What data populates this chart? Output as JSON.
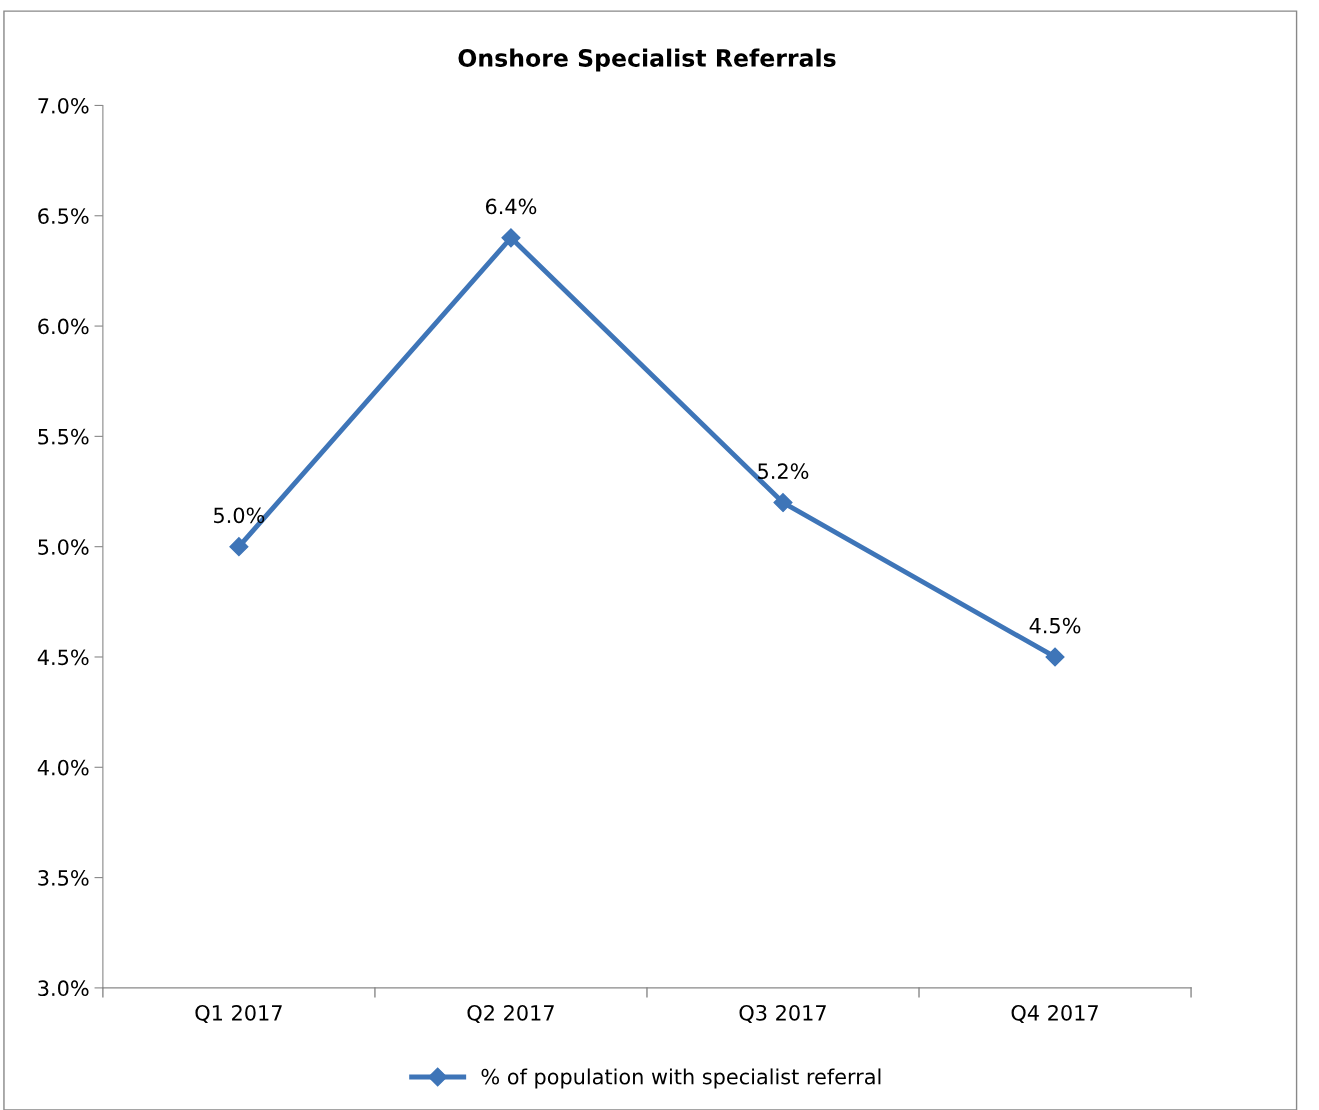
{
  "chart_data": {
    "type": "line",
    "title": "Onshore Specialist Referrals",
    "categories": [
      "Q1 2017",
      "Q2 2017",
      "Q3 2017",
      "Q4 2017"
    ],
    "series": [
      {
        "name": "% of population with specialist referral",
        "color": "#3e75b8",
        "values": [
          5.0,
          6.4,
          5.2,
          4.5
        ],
        "value_labels": [
          "5.0%",
          "6.4%",
          "5.2%",
          "4.5%"
        ]
      }
    ],
    "ylim": [
      3.0,
      7.0
    ],
    "yticks": [
      {
        "value": 3.0,
        "label": "3.0%"
      },
      {
        "value": 3.5,
        "label": "3.5%"
      },
      {
        "value": 4.0,
        "label": "4.0%"
      },
      {
        "value": 4.5,
        "label": "4.5%"
      },
      {
        "value": 5.0,
        "label": "5.0%"
      },
      {
        "value": 5.5,
        "label": "5.5%"
      },
      {
        "value": 6.0,
        "label": "6.0%"
      },
      {
        "value": 6.5,
        "label": "6.5%"
      },
      {
        "value": 7.0,
        "label": "7.0%"
      }
    ],
    "grid": false,
    "legend": "bottom",
    "marker": "diamond",
    "line_style": "solid"
  }
}
